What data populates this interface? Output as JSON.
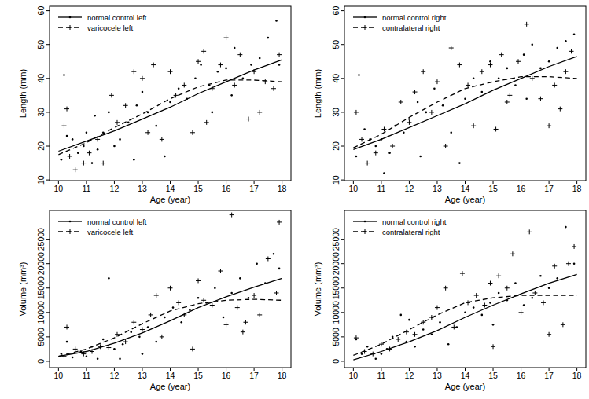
{
  "chart_data": [
    {
      "type": "scatter",
      "xlabel": "Age (year)",
      "ylabel": "Length (mm)",
      "xlim": [
        9.68,
        18.32
      ],
      "ylim": [
        9.8,
        61.3
      ],
      "xticks": [
        10,
        11,
        12,
        13,
        14,
        15,
        16,
        17,
        18
      ],
      "yticks": [
        10,
        20,
        30,
        40,
        50,
        60
      ],
      "grid": false,
      "legend": "topleft",
      "series": [
        {
          "name": "normal control left",
          "color": "#000000",
          "line_style": "solid",
          "marker": "dot",
          "x": [
            10,
            11,
            12,
            13,
            14,
            15,
            16,
            17,
            18
          ],
          "values": [
            18.5,
            21.5,
            24.5,
            28,
            31.5,
            35.5,
            39,
            42.5,
            45.5
          ],
          "points": {
            "x": [
              10.1,
              10.2,
              10.3,
              10.5,
              10.7,
              10.9,
              11.0,
              11.2,
              11.4,
              11.6,
              11.8,
              12.0,
              12.2,
              12.5,
              12.8,
              13.0,
              13.2,
              13.5,
              13.8,
              14.0,
              14.3,
              14.6,
              14.9,
              15.1,
              15.4,
              15.7,
              16.0,
              16.3,
              16.6,
              16.9,
              17.2,
              17.5,
              17.8,
              17.9,
              15.5,
              16.2,
              12.7,
              11.3
            ],
            "y": [
              16,
              41,
              23,
              22,
              18,
              20,
              24,
              15,
              19,
              24,
              30,
              20,
              22,
              27,
              32,
              36,
              30,
              26,
              17,
              33,
              37,
              34,
              40,
              44,
              38,
              42,
              43,
              49,
              40,
              44,
              46,
              52,
              57,
              44,
              30,
              35,
              16,
              29
            ]
          }
        },
        {
          "name": "varicocele left",
          "color": "#000000",
          "line_style": "dashed",
          "marker": "plus",
          "x": [
            10,
            11,
            12,
            13,
            14,
            15,
            16,
            17,
            18
          ],
          "values": [
            17.5,
            21,
            25.5,
            29.5,
            34,
            37.5,
            39.5,
            39.5,
            39
          ],
          "points": {
            "x": [
              10.2,
              10.3,
              10.4,
              10.6,
              10.9,
              11.1,
              11.4,
              11.6,
              11.9,
              12.1,
              12.4,
              12.7,
              13.0,
              13.2,
              13.4,
              13.7,
              14.0,
              14.2,
              14.5,
              14.8,
              15.0,
              15.2,
              15.5,
              15.8,
              16.0,
              16.3,
              16.5,
              16.8,
              17.0,
              17.2,
              17.4,
              17.7,
              17.9,
              15.3
            ],
            "y": [
              26,
              31,
              17,
              13,
              15,
              18,
              22,
              15,
              35,
              27,
              32,
              42,
              40,
              24,
              44,
              22,
              42,
              35,
              38,
              24,
              45,
              48,
              37,
              44,
              52,
              38,
              47,
              28,
              42,
              30,
              39,
              37,
              47,
              27
            ]
          }
        }
      ]
    },
    {
      "type": "scatter",
      "xlabel": "Age (year)",
      "ylabel": "Length (mm)",
      "xlim": [
        9.68,
        18.32
      ],
      "ylim": [
        9.8,
        61.3
      ],
      "xticks": [
        10,
        11,
        12,
        13,
        14,
        15,
        16,
        17,
        18
      ],
      "yticks": [
        10,
        20,
        30,
        40,
        50,
        60
      ],
      "grid": false,
      "legend": "topleft",
      "series": [
        {
          "name": "normal control right",
          "color": "#000000",
          "line_style": "solid",
          "marker": "dot",
          "x": [
            10,
            11,
            12,
            13,
            14,
            15,
            16,
            17,
            18
          ],
          "values": [
            19,
            22,
            25.5,
            29,
            32.5,
            36.5,
            40,
            43.5,
            46.5
          ],
          "points": {
            "x": [
              10.1,
              10.2,
              10.4,
              10.6,
              10.8,
              11.0,
              11.1,
              11.3,
              11.5,
              11.8,
              12.0,
              12.3,
              12.6,
              12.9,
              13.2,
              13.5,
              13.8,
              14.0,
              14.3,
              14.6,
              14.9,
              15.2,
              15.5,
              15.8,
              16.1,
              16.4,
              16.7,
              17.0,
              17.3,
              17.6,
              17.9,
              16.2,
              12.4
            ],
            "y": [
              17,
              41,
              25,
              22,
              20,
              22,
              12,
              18,
              26,
              24,
              28,
              33,
              30,
              37,
              32,
              24,
              15,
              34,
              40,
              36,
              45,
              40,
              43,
              38,
              47,
              50,
              43,
              45,
              49,
              51,
              53,
              34,
              17
            ]
          }
        },
        {
          "name": "contralateral right",
          "color": "#000000",
          "line_style": "dashed",
          "marker": "plus",
          "x": [
            10,
            11,
            12,
            13,
            14,
            15,
            16,
            17,
            18
          ],
          "values": [
            19.5,
            23.5,
            28.5,
            33,
            37,
            39,
            40.5,
            40.5,
            40
          ],
          "points": {
            "x": [
              10.1,
              10.3,
              10.5,
              10.8,
              11.1,
              11.4,
              11.7,
              12.0,
              12.2,
              12.5,
              12.8,
              13.0,
              13.3,
              13.5,
              13.8,
              14.1,
              14.3,
              14.6,
              14.9,
              15.1,
              15.3,
              15.6,
              15.9,
              16.2,
              16.4,
              16.7,
              17.0,
              17.2,
              17.4,
              17.6,
              17.8,
              15.5
            ],
            "y": [
              30,
              22,
              15,
              18,
              25,
              20,
              33,
              27,
              36,
              42,
              30,
              39,
              20,
              49,
              44,
              38,
              26,
              42,
              44,
              25,
              47,
              35,
              45,
              56,
              40,
              34,
              26,
              38,
              31,
              42,
              48,
              33
            ]
          }
        }
      ]
    },
    {
      "type": "scatter",
      "xlabel": "Age (year)",
      "ylabel": "Volume (mm³)",
      "xlim": [
        9.68,
        18.32
      ],
      "ylim": [
        -1300,
        30900
      ],
      "xticks": [
        10,
        11,
        12,
        13,
        14,
        15,
        16,
        17,
        18
      ],
      "yticks": [
        0,
        5000,
        10000,
        15000,
        20000,
        25000
      ],
      "grid": false,
      "legend": "topleft",
      "series": [
        {
          "name": "normal control left",
          "color": "#000000",
          "line_style": "solid",
          "marker": "dot",
          "x": [
            10,
            11,
            12,
            13,
            14,
            15,
            16,
            17,
            18
          ],
          "values": [
            1000,
            2000,
            3700,
            5800,
            8300,
            11000,
            13200,
            15200,
            17000
          ],
          "points": {
            "x": [
              10.1,
              10.3,
              10.5,
              10.8,
              11.0,
              11.2,
              11.4,
              11.6,
              11.8,
              12.0,
              12.3,
              12.6,
              12.9,
              13.2,
              13.5,
              13.8,
              14.1,
              14.4,
              14.7,
              15.0,
              15.3,
              15.6,
              15.9,
              16.2,
              16.5,
              16.8,
              17.1,
              17.4,
              17.7,
              17.9,
              13.0,
              12.2
            ],
            "y": [
              1500,
              4000,
              800,
              2000,
              1000,
              3000,
              500,
              4500,
              17000,
              2500,
              3500,
              6000,
              5000,
              7000,
              4000,
              9000,
              11000,
              8000,
              10500,
              13000,
              12000,
              15000,
              9000,
              14000,
              17000,
              13000,
              20000,
              16000,
              22000,
              19000,
              1500,
              500
            ]
          }
        },
        {
          "name": "varicocele left",
          "color": "#000000",
          "line_style": "dashed",
          "marker": "plus",
          "x": [
            10,
            11,
            12,
            13,
            14,
            15,
            16,
            17,
            18
          ],
          "values": [
            1000,
            2500,
            4800,
            7700,
            10300,
            11800,
            12500,
            12700,
            12500
          ],
          "points": {
            "x": [
              10.2,
              10.3,
              10.6,
              10.9,
              11.2,
              11.5,
              11.8,
              12.1,
              12.4,
              12.7,
              13.0,
              13.3,
              13.5,
              13.7,
              14.0,
              14.3,
              14.5,
              14.8,
              15.0,
              15.2,
              15.5,
              15.8,
              16.0,
              16.2,
              16.4,
              16.7,
              17.0,
              17.2,
              17.5,
              17.8,
              17.9,
              16.6
            ],
            "y": [
              1000,
              7000,
              2500,
              1500,
              2000,
              3000,
              2800,
              5500,
              4000,
              8000,
              6500,
              9500,
              13500,
              5000,
              15000,
              12000,
              9500,
              2500,
              16500,
              12500,
              11500,
              18500,
              7500,
              30000,
              11000,
              8000,
              13500,
              9500,
              21000,
              14000,
              28500,
              6000
            ]
          }
        }
      ]
    },
    {
      "type": "scatter",
      "xlabel": "Age (year)",
      "ylabel": "Volume (mm³)",
      "xlim": [
        9.68,
        18.32
      ],
      "ylim": [
        -1300,
        30900
      ],
      "xticks": [
        10,
        11,
        12,
        13,
        14,
        15,
        16,
        17,
        18
      ],
      "yticks": [
        0,
        5000,
        10000,
        15000,
        20000,
        25000
      ],
      "grid": false,
      "legend": "topleft",
      "series": [
        {
          "name": "normal control right",
          "color": "#000000",
          "line_style": "solid",
          "marker": "dot",
          "x": [
            10,
            11,
            12,
            13,
            14,
            15,
            16,
            17,
            18
          ],
          "values": [
            300,
            2000,
            4000,
            6300,
            9000,
            11500,
            13800,
            16000,
            17800
          ],
          "points": {
            "x": [
              10.1,
              10.3,
              10.5,
              10.8,
              11.0,
              11.2,
              11.4,
              11.7,
              11.9,
              12.2,
              12.5,
              12.8,
              13.1,
              13.4,
              13.7,
              14.0,
              14.3,
              14.6,
              14.9,
              15.2,
              15.5,
              15.8,
              16.1,
              16.4,
              16.7,
              17.0,
              17.3,
              17.6,
              17.9,
              12.0,
              15.0
            ],
            "y": [
              4500,
              1500,
              3000,
              500,
              1500,
              2500,
              5000,
              9500,
              4000,
              3000,
              6500,
              5500,
              8000,
              3500,
              7000,
              10000,
              11000,
              9500,
              12000,
              14000,
              12500,
              16000,
              11500,
              13000,
              17500,
              15000,
              17000,
              27500,
              20000,
              8500,
              7500
            ]
          }
        },
        {
          "name": "contralateral right",
          "color": "#000000",
          "line_style": "dashed",
          "marker": "plus",
          "x": [
            10,
            11,
            12,
            13,
            14,
            15,
            16,
            17,
            18
          ],
          "values": [
            1200,
            3500,
            6500,
            9500,
            12000,
            13000,
            13500,
            13500,
            13500
          ],
          "points": {
            "x": [
              10.1,
              10.4,
              10.7,
              11.0,
              11.3,
              11.6,
              11.9,
              12.2,
              12.5,
              12.8,
              13.0,
              13.3,
              13.6,
              13.9,
              14.1,
              14.4,
              14.7,
              15.0,
              15.2,
              15.5,
              15.7,
              16.0,
              16.3,
              16.5,
              16.8,
              17.0,
              17.2,
              17.5,
              17.7,
              17.9,
              14.9
            ],
            "y": [
              4800,
              2000,
              1500,
              3500,
              2500,
              4500,
              6000,
              5500,
              8000,
              9000,
              11000,
              15000,
              7000,
              18000,
              12000,
              13500,
              11500,
              3000,
              17500,
              15000,
              22000,
              10000,
              26500,
              14000,
              12000,
              5500,
              19500,
              7500,
              20000,
              23500,
              16000
            ]
          }
        }
      ]
    }
  ]
}
